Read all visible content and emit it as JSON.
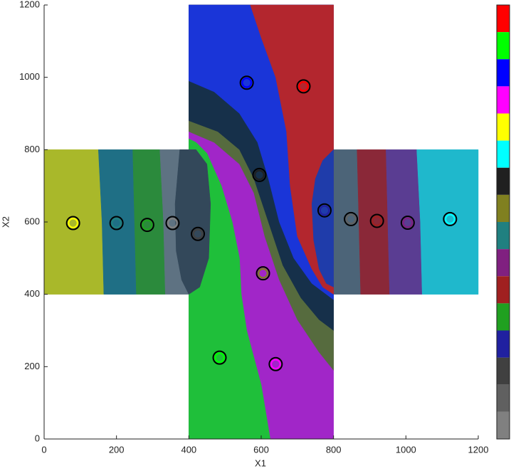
{
  "chart_data": {
    "type": "region",
    "xlabel": "X1",
    "ylabel": "X2",
    "xlim": [
      0,
      1200
    ],
    "ylim": [
      0,
      1200
    ],
    "xticks": [
      0,
      200,
      400,
      600,
      800,
      1000,
      1200
    ],
    "yticks": [
      0,
      200,
      400,
      600,
      800,
      1000,
      1200
    ],
    "regions": [
      {
        "color": "#a9b82a",
        "x": [
          0,
          165,
          160,
          150,
          0
        ],
        "y": [
          400,
          400,
          600,
          800,
          800
        ]
      },
      {
        "color": "#1f6f85",
        "x": [
          150,
          160,
          165,
          255,
          250,
          245
        ],
        "y": [
          800,
          600,
          400,
          400,
          600,
          800
        ]
      },
      {
        "color": "#2b8a3c",
        "x": [
          245,
          250,
          255,
          335,
          330,
          320
        ],
        "y": [
          800,
          600,
          400,
          400,
          600,
          800
        ]
      },
      {
        "color": "#5e7282",
        "x": [
          320,
          330,
          335,
          400,
          400
        ],
        "y": [
          800,
          600,
          400,
          400,
          800
        ]
      },
      {
        "color": "#4c6478",
        "x": [
          800,
          875,
          870,
          865,
          800
        ],
        "y": [
          400,
          400,
          600,
          800,
          800
        ]
      },
      {
        "color": "#8a2838",
        "x": [
          865,
          870,
          875,
          955,
          950,
          945
        ],
        "y": [
          800,
          600,
          400,
          400,
          600,
          800
        ]
      },
      {
        "color": "#5a3d92",
        "x": [
          945,
          950,
          955,
          1045,
          1040,
          1030
        ],
        "y": [
          800,
          600,
          400,
          400,
          600,
          800
        ]
      },
      {
        "color": "#1fb8cc",
        "x": [
          1030,
          1040,
          1045,
          1200,
          1200
        ],
        "y": [
          800,
          600,
          400,
          400,
          800
        ]
      },
      {
        "color": "#a126c8",
        "x": [
          400,
          800,
          800,
          400
        ],
        "y": [
          0,
          0,
          1200,
          1200
        ]
      },
      {
        "color": "#566b3e",
        "x": [
          400,
          470,
          540,
          580,
          610,
          650,
          700,
          760,
          800,
          800,
          400
        ],
        "y": [
          850,
          820,
          760,
          680,
          560,
          440,
          330,
          240,
          190,
          1200,
          1200
        ]
      },
      {
        "color": "#16304a",
        "x": [
          400,
          480,
          540,
          580,
          620,
          660,
          710,
          760,
          800,
          800,
          400
        ],
        "y": [
          880,
          850,
          800,
          720,
          600,
          480,
          390,
          330,
          300,
          1200,
          1200
        ]
      },
      {
        "color": "#1a35d8",
        "x": [
          400,
          470,
          540,
          590,
          620,
          650,
          690,
          740,
          800,
          800,
          400
        ],
        "y": [
          990,
          960,
          900,
          820,
          720,
          600,
          500,
          430,
          385,
          1200,
          1200
        ]
      },
      {
        "color": "#b3262e",
        "x": [
          570,
          800,
          800,
          770,
          740,
          700,
          680,
          670,
          640,
          600
        ],
        "y": [
          1200,
          1200,
          400,
          420,
          470,
          560,
          700,
          850,
          1000,
          1110
        ]
      },
      {
        "color": "#1f3caa",
        "x": [
          800,
          780,
          760,
          745,
          740,
          750,
          770,
          800
        ],
        "y": [
          420,
          430,
          470,
          550,
          650,
          720,
          770,
          800
        ]
      },
      {
        "color": "#1fbf3a",
        "x": [
          400,
          625,
          600,
          560,
          545,
          540,
          520,
          490,
          450,
          420,
          400
        ],
        "y": [
          0,
          0,
          150,
          300,
          400,
          500,
          600,
          700,
          790,
          820,
          830
        ]
      },
      {
        "color": "#33485a",
        "x": [
          375,
          420,
          450,
          460,
          455,
          430,
          400,
          380,
          365,
          362
        ],
        "y": [
          800,
          800,
          760,
          650,
          500,
          420,
          400,
          440,
          520,
          650
        ]
      }
    ],
    "points": {
      "x": [
        80,
        200,
        285,
        355,
        425,
        560,
        717,
        595,
        605,
        485,
        640,
        775,
        848,
        920,
        1005,
        1122
      ],
      "y": [
        597,
        597,
        592,
        597,
        567,
        985,
        975,
        730,
        458,
        225,
        207,
        632,
        608,
        603,
        598,
        608
      ],
      "colors": [
        "#ffff00",
        "#208080",
        "#20a020",
        "#808080",
        "#404040",
        "#0000ff",
        "#ff0000",
        "#202020",
        "#808020",
        "#00ff00",
        "#ff00ff",
        "#2020a0",
        "#606060",
        "#a02020",
        "#802080",
        "#00ffff"
      ]
    },
    "colorbar": [
      "#ff0000",
      "#00ff00",
      "#0000ff",
      "#ff00ff",
      "#ffff00",
      "#00ffff",
      "#202020",
      "#808020",
      "#208080",
      "#802080",
      "#a02020",
      "#20a020",
      "#2020a0",
      "#404040",
      "#606060",
      "#808080"
    ]
  }
}
